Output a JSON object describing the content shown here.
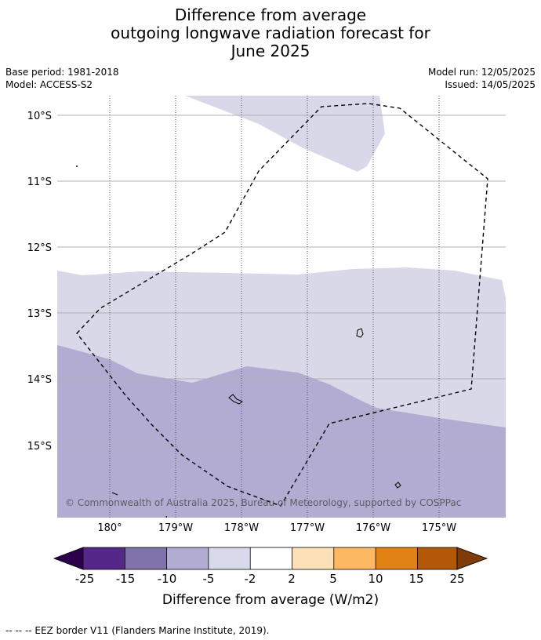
{
  "title": {
    "line1": "Difference from average",
    "line2": "outgoing longwave radiation forecast for",
    "line3": "June 2025"
  },
  "meta": {
    "base_period": "Base period: 1981-2018",
    "model": "Model: ACCESS-S2",
    "model_run": "Model run: 12/05/2025",
    "issued": "Issued: 14/05/2025"
  },
  "map": {
    "lat_labels": [
      "10°S",
      "11°S",
      "12°S",
      "13°S",
      "14°S",
      "15°S"
    ],
    "lon_labels": [
      "180°",
      "179°W",
      "178°W",
      "177°W",
      "176°W",
      "175°W"
    ],
    "copyright": "© Commonwealth of Australia 2025, Bureau of Meteorology, supported by COSPPac",
    "region_colors": {
      "-5_to_-2": "#d8d8e9",
      "-10_to_-5": "#b2abd2"
    }
  },
  "colorbar": {
    "label": "Difference from average (W/m2)",
    "ticks": [
      "-25",
      "-15",
      "-10",
      "-5",
      "-2",
      "2",
      "5",
      "10",
      "15",
      "25"
    ],
    "colors": [
      "#2d004b",
      "#542788",
      "#8073ac",
      "#b2abd2",
      "#d8daeb",
      "#ffffff",
      "#fee0b6",
      "#fdb863",
      "#e08214",
      "#b35806",
      "#7f3b08"
    ]
  },
  "footnote": "--  --  -- EEZ border V11 (Flanders Marine Institute, 2019)."
}
